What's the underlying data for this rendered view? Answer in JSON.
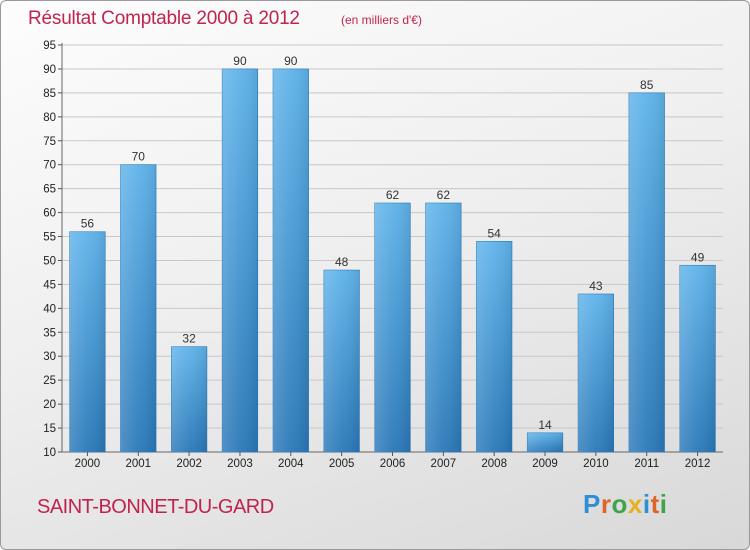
{
  "chart_data": {
    "type": "bar",
    "title": "Résultat Comptable 2000 à 2012",
    "subtitle": "(en milliers d'€)",
    "categories": [
      "2000",
      "2001",
      "2002",
      "2003",
      "2004",
      "2005",
      "2006",
      "2007",
      "2008",
      "2009",
      "2010",
      "2011",
      "2012"
    ],
    "values": [
      56,
      70,
      32,
      90,
      90,
      48,
      62,
      62,
      54,
      14,
      43,
      85,
      49
    ],
    "ylim": [
      10,
      95
    ],
    "yticks": [
      10,
      15,
      20,
      25,
      30,
      35,
      40,
      45,
      50,
      55,
      60,
      65,
      70,
      75,
      80,
      85,
      90,
      95
    ],
    "xlabel": "",
    "ylabel": "",
    "grid": true,
    "colors": {
      "bar": "#4a9ed8",
      "bar_light": "#5fb3ea",
      "bar_dark": "#2a78b8",
      "accent": "#c0244e"
    }
  },
  "footer": {
    "town": "SAINT-BONNET-DU-GARD"
  },
  "logo": {
    "letters": [
      {
        "ch": "P",
        "color": "#2e8fd6"
      },
      {
        "ch": "r",
        "color": "#e0632b"
      },
      {
        "ch": "o",
        "color": "#3fa34d"
      },
      {
        "ch": "x",
        "color": "#e8b11c"
      },
      {
        "ch": "i",
        "color": "#2e8fd6"
      },
      {
        "ch": "t",
        "color": "#e0632b"
      },
      {
        "ch": "i",
        "color": "#3fa34d"
      }
    ]
  }
}
